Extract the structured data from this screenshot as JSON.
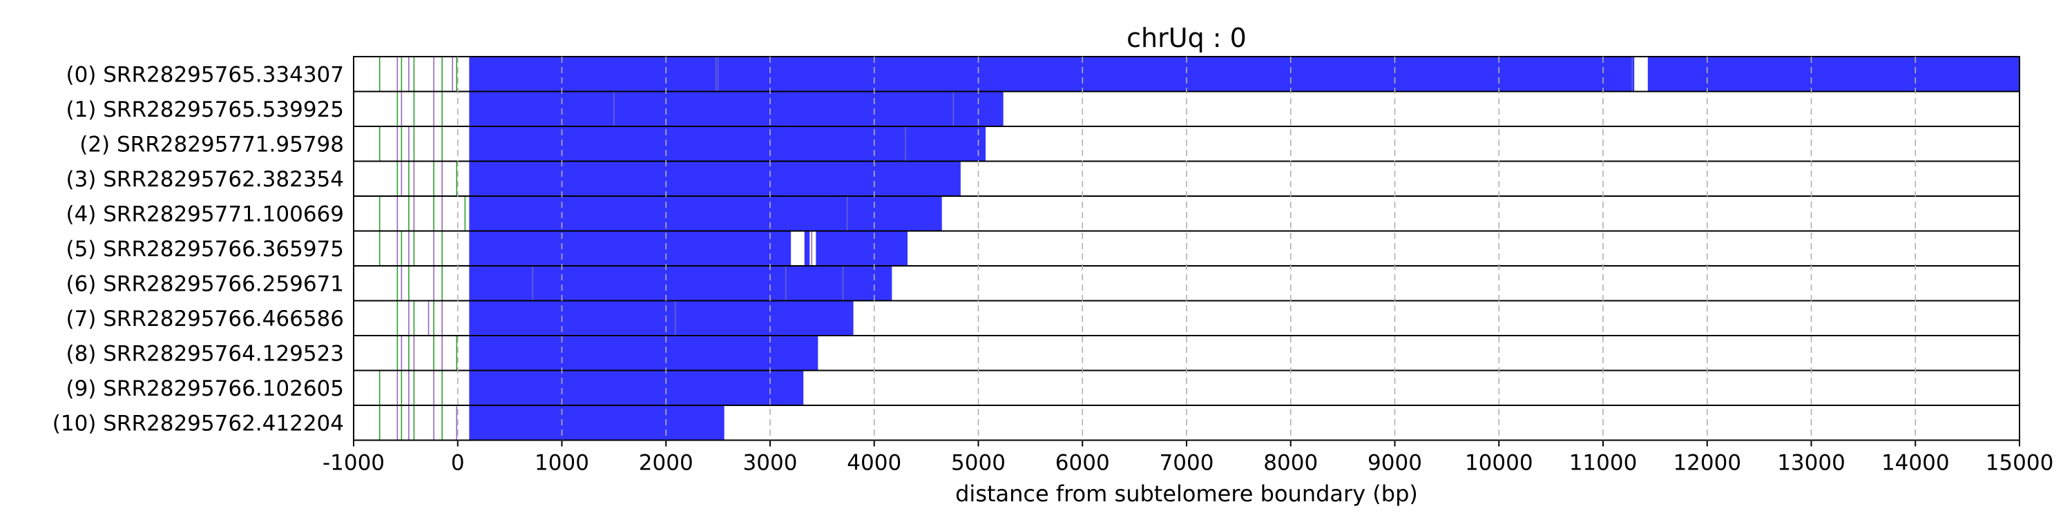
{
  "chart_data": {
    "type": "bar",
    "title": "chrUq : 0",
    "xlabel": "distance from subtelomere boundary (bp)",
    "ylabel": "",
    "xlim": [
      -1000,
      15000
    ],
    "xticks": [
      -1000,
      0,
      1000,
      2000,
      3000,
      4000,
      5000,
      6000,
      7000,
      8000,
      9000,
      10000,
      11000,
      12000,
      13000,
      14000,
      15000
    ],
    "x_grid": true,
    "bar_color": "#3333ff",
    "minor_line_colors": [
      "#2ca02c",
      "#9467bd",
      "#1f1f8f"
    ],
    "categories": [
      "(0) SRR28295765.334307",
      "(1) SRR28295765.539925",
      "(2) SRR28295771.95798",
      "(3) SRR28295762.382354",
      "(4) SRR28295771.100669",
      "(5) SRR28295766.365975",
      "(6) SRR28295766.259671",
      "(7) SRR28295766.466586",
      "(8) SRR28295764.129523",
      "(9) SRR28295766.102605",
      "(10) SRR28295762.412204"
    ],
    "reads": [
      {
        "segments": [
          [
            110,
            11300
          ],
          [
            11430,
            15000
          ]
        ],
        "ticks": [
          -750,
          -580,
          -540,
          -470,
          -420,
          -230,
          -150,
          -50,
          -10,
          2480,
          2500,
          11280
        ]
      },
      {
        "segments": [
          [
            110,
            5240
          ]
        ],
        "ticks": [
          -580,
          -540,
          -420,
          -230,
          -150,
          1500,
          4760
        ]
      },
      {
        "segments": [
          [
            110,
            5070
          ]
        ],
        "ticks": [
          -750,
          -580,
          -540,
          -470,
          -420,
          -230,
          -150,
          4300
        ]
      },
      {
        "segments": [
          [
            110,
            4830
          ]
        ],
        "ticks": [
          -580,
          -540,
          -470,
          -420,
          -230,
          -150,
          -10
        ]
      },
      {
        "segments": [
          [
            110,
            4650
          ]
        ],
        "ticks": [
          -750,
          -580,
          -470,
          -420,
          -230,
          -150,
          70,
          3740
        ]
      },
      {
        "segments": [
          [
            110,
            3200
          ],
          [
            3330,
            3380
          ],
          [
            3440,
            4320
          ]
        ],
        "ticks": [
          -750,
          -580,
          -540,
          -470,
          -420,
          -230,
          -150,
          3400
        ]
      },
      {
        "segments": [
          [
            110,
            4170
          ]
        ],
        "ticks": [
          -580,
          -540,
          -470,
          -230,
          -150,
          720,
          3150,
          3700
        ]
      },
      {
        "segments": [
          [
            110,
            3800
          ]
        ],
        "ticks": [
          -580,
          -470,
          -420,
          -280,
          -230,
          -150,
          2090
        ]
      },
      {
        "segments": [
          [
            110,
            3460
          ]
        ],
        "ticks": [
          -580,
          -540,
          -470,
          -420,
          -230,
          -150,
          -10
        ]
      },
      {
        "segments": [
          [
            110,
            3320
          ]
        ],
        "ticks": [
          -750,
          -580,
          -540,
          -470,
          -420,
          -230,
          -150
        ]
      },
      {
        "segments": [
          [
            110,
            2560
          ]
        ],
        "ticks": [
          -750,
          -580,
          -540,
          -470,
          -420,
          -230,
          -150,
          -10
        ]
      }
    ]
  }
}
